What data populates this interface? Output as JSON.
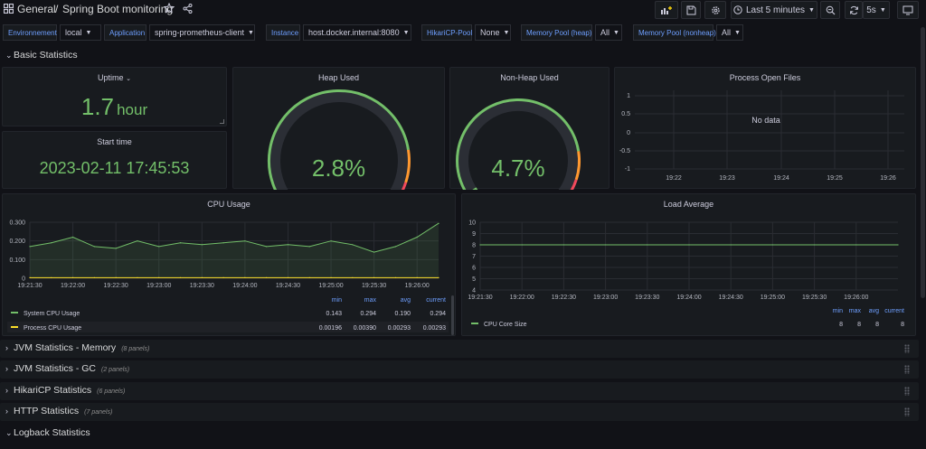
{
  "header": {
    "folder": "General",
    "separator": "/",
    "dashboard_title": "Spring Boot monitoring",
    "time_range": "Last 5 minutes",
    "refresh_interval": "5s"
  },
  "variables": [
    {
      "label": "Environnement",
      "value": "local"
    },
    {
      "label": "Application",
      "value": "spring-prometheus-client"
    },
    {
      "label": "Instance",
      "value": "host.docker.internal:8080"
    },
    {
      "label": "HikariCP-Pool",
      "value": "None"
    },
    {
      "label": "Memory Pool (heap)",
      "value": "All"
    },
    {
      "label": "Memory Pool (nonheap)",
      "value": "All"
    }
  ],
  "rows": {
    "basic": {
      "title": "Basic Statistics"
    },
    "jvm_memory": {
      "title": "JVM Statistics - Memory",
      "count": "(8 panels)"
    },
    "jvm_gc": {
      "title": "JVM Statistics - GC",
      "count": "(2 panels)"
    },
    "hikari": {
      "title": "HikariCP Statistics",
      "count": "(6 panels)"
    },
    "http": {
      "title": "HTTP Statistics",
      "count": "(7 panels)"
    },
    "logback": {
      "title": "Logback Statistics"
    }
  },
  "panels": {
    "uptime": {
      "title": "Uptime",
      "value": "1.7",
      "unit": "hour"
    },
    "start_time": {
      "title": "Start time",
      "value": "2023-02-11 17:45:53"
    },
    "heap_used": {
      "title": "Heap Used",
      "value": "2.8%",
      "percent": 2.8
    },
    "nonheap_used": {
      "title": "Non-Heap Used",
      "value": "4.7%",
      "percent": 4.7
    },
    "open_files": {
      "title": "Process Open Files",
      "no_data": "No data",
      "y_ticks": [
        "1",
        "0.5",
        "0",
        "-0.5",
        "-1"
      ],
      "x_ticks": [
        "19:22",
        "19:23",
        "19:24",
        "19:25",
        "19:26"
      ]
    },
    "cpu": {
      "title": "CPU Usage",
      "legend_headers": [
        "min",
        "max",
        "avg",
        "current"
      ],
      "legend": [
        {
          "name": "System CPU Usage",
          "color": "#73bf69",
          "min": "0.143",
          "max": "0.294",
          "avg": "0.190",
          "current": "0.294"
        },
        {
          "name": "Process CPU Usage",
          "color": "#fade2a",
          "min": "0.00196",
          "max": "0.00390",
          "avg": "0.00293",
          "current": "0.00293"
        }
      ]
    },
    "load": {
      "title": "Load Average",
      "legend_headers": [
        "min",
        "max",
        "avg",
        "current"
      ],
      "legend": [
        {
          "name": "CPU Core Size",
          "color": "#73bf69",
          "min": "8",
          "max": "8",
          "avg": "8",
          "current": "8"
        }
      ]
    }
  },
  "chart_data": [
    {
      "type": "line",
      "title": "CPU Usage",
      "x": [
        "19:21:30",
        "19:21:45",
        "19:22:00",
        "19:22:15",
        "19:22:30",
        "19:22:45",
        "19:23:00",
        "19:23:15",
        "19:23:30",
        "19:23:45",
        "19:24:00",
        "19:24:15",
        "19:24:30",
        "19:24:45",
        "19:25:00",
        "19:25:15",
        "19:25:30",
        "19:25:45",
        "19:26:00",
        "19:26:15"
      ],
      "x_ticks": [
        "19:21:30",
        "19:22:00",
        "19:22:30",
        "19:23:00",
        "19:23:30",
        "19:24:00",
        "19:24:30",
        "19:25:00",
        "19:25:30",
        "19:26:00"
      ],
      "ylim": [
        0,
        0.3
      ],
      "y_ticks": [
        "0.300",
        "0.200",
        "0.100",
        "0"
      ],
      "series": [
        {
          "name": "System CPU Usage",
          "color": "#73bf69",
          "values": [
            0.17,
            0.19,
            0.22,
            0.17,
            0.16,
            0.2,
            0.17,
            0.19,
            0.18,
            0.19,
            0.2,
            0.17,
            0.18,
            0.17,
            0.2,
            0.18,
            0.14,
            0.17,
            0.22,
            0.294
          ]
        },
        {
          "name": "Process CPU Usage",
          "color": "#fade2a",
          "values": [
            0.003,
            0.003,
            0.003,
            0.003,
            0.003,
            0.003,
            0.003,
            0.003,
            0.003,
            0.003,
            0.003,
            0.003,
            0.003,
            0.003,
            0.003,
            0.003,
            0.003,
            0.003,
            0.003,
            0.003
          ]
        }
      ]
    },
    {
      "type": "line",
      "title": "Load Average",
      "x": [
        "19:21:30",
        "19:22:00",
        "19:22:30",
        "19:23:00",
        "19:23:30",
        "19:24:00",
        "19:24:30",
        "19:25:00",
        "19:25:30",
        "19:26:00",
        "19:26:15"
      ],
      "x_ticks": [
        "19:21:30",
        "19:22:00",
        "19:22:30",
        "19:23:00",
        "19:23:30",
        "19:24:00",
        "19:24:30",
        "19:25:00",
        "19:25:30",
        "19:26:00"
      ],
      "ylim": [
        4,
        10
      ],
      "y_ticks": [
        "10",
        "9",
        "8",
        "7",
        "6",
        "5",
        "4"
      ],
      "series": [
        {
          "name": "CPU Core Size",
          "color": "#73bf69",
          "values": [
            8,
            8,
            8,
            8,
            8,
            8,
            8,
            8,
            8,
            8,
            8
          ]
        }
      ]
    }
  ]
}
